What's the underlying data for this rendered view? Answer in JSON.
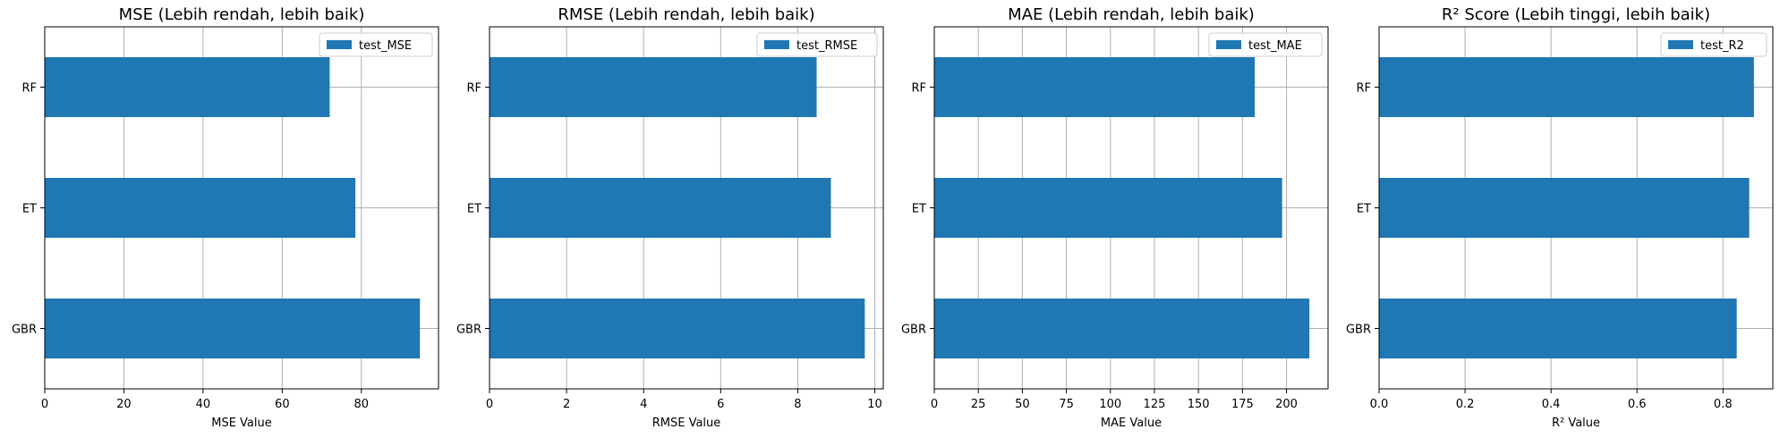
{
  "chart_data": [
    {
      "type": "bar",
      "orientation": "horizontal",
      "title": "MSE (Lebih rendah, lebih baik)",
      "categories": [
        "GBR",
        "ET",
        "RF"
      ],
      "series": [
        {
          "name": "test_MSE",
          "values": [
            94.8,
            78.5,
            72.0
          ]
        }
      ],
      "xlabel": "MSE Value",
      "ylabel": "",
      "xlim": [
        0,
        99.5
      ],
      "xticks": [
        0,
        20,
        40,
        60,
        80
      ],
      "xtick_labels": [
        "0",
        "20",
        "40",
        "60",
        "80"
      ],
      "grid": true,
      "legend": "upper right",
      "color": "#1f77b4"
    },
    {
      "type": "bar",
      "orientation": "horizontal",
      "title": "RMSE (Lebih rendah, lebih baik)",
      "categories": [
        "GBR",
        "ET",
        "RF"
      ],
      "series": [
        {
          "name": "test_RMSE",
          "values": [
            9.74,
            8.86,
            8.49
          ]
        }
      ],
      "xlabel": "RMSE Value",
      "ylabel": "",
      "xlim": [
        0,
        10.22
      ],
      "xticks": [
        0,
        2,
        4,
        6,
        8,
        10
      ],
      "xtick_labels": [
        "0",
        "2",
        "4",
        "6",
        "8",
        "10"
      ],
      "grid": true,
      "legend": "upper right",
      "color": "#1f77b4"
    },
    {
      "type": "bar",
      "orientation": "horizontal",
      "title": "MAE (Lebih rendah, lebih baik)",
      "categories": [
        "GBR",
        "ET",
        "RF"
      ],
      "series": [
        {
          "name": "test_MAE",
          "values": [
            213.0,
            197.5,
            182.0
          ]
        }
      ],
      "xlabel": "MAE Value",
      "ylabel": "",
      "xlim": [
        0,
        223.6
      ],
      "xticks": [
        0,
        25,
        50,
        75,
        100,
        125,
        150,
        175,
        200
      ],
      "xtick_labels": [
        "0",
        "25",
        "50",
        "75",
        "100",
        "125",
        "150",
        "175",
        "200"
      ],
      "grid": true,
      "legend": "upper right",
      "color": "#1f77b4"
    },
    {
      "type": "bar",
      "orientation": "horizontal",
      "title": "R² Score (Lebih tinggi, lebih baik)",
      "categories": [
        "GBR",
        "ET",
        "RF"
      ],
      "series": [
        {
          "name": "test_R2",
          "values": [
            0.832,
            0.861,
            0.872
          ]
        }
      ],
      "xlabel": "R² Value",
      "ylabel": "",
      "xlim": [
        0,
        0.916
      ],
      "xticks": [
        0,
        0.2,
        0.4,
        0.6,
        0.8
      ],
      "xtick_labels": [
        "0.0",
        "0.2",
        "0.4",
        "0.6",
        "0.8"
      ],
      "grid": true,
      "legend": "upper right",
      "color": "#1f77b4"
    }
  ]
}
